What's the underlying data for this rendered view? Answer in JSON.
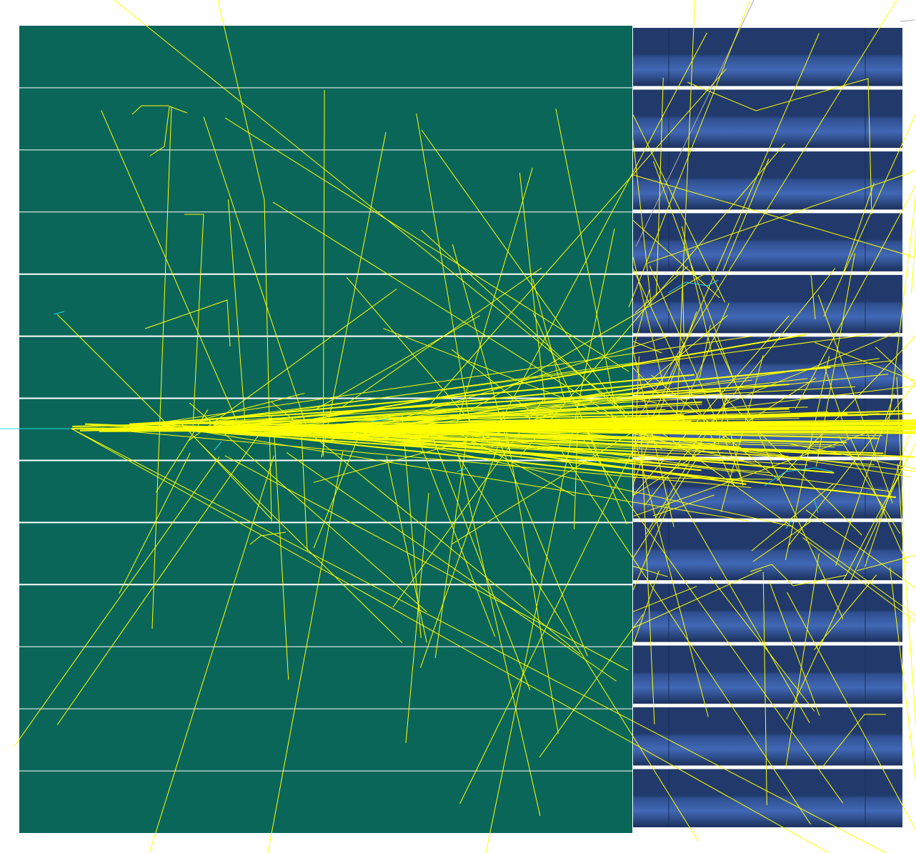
{
  "colors": {
    "background": "#ffffff",
    "calorimeter_block": "#0b665a",
    "layer_divider": "#ffffff",
    "module_dark": "#223a6b",
    "module_light": "#3e64b0",
    "module_gap": "#ffffff",
    "particle_track": "#ffff00",
    "secondary_track": "#22d8e0",
    "neutral_track": "#a9a9a9"
  },
  "detector": {
    "left_block_layers": 13,
    "right_modules": 13
  }
}
